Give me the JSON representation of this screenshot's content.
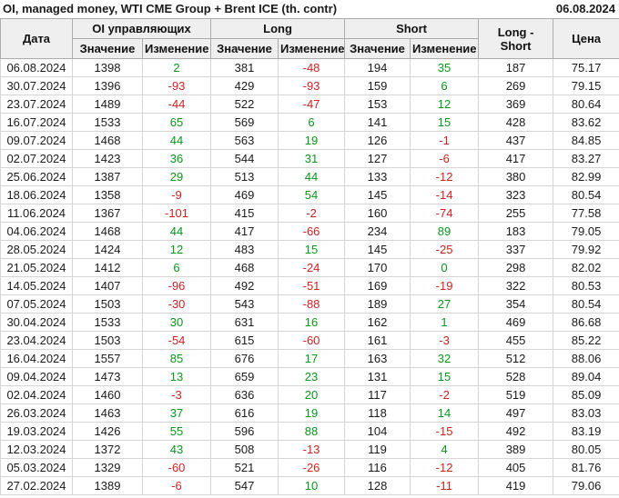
{
  "header": {
    "title": "OI, managed money, WTI CME Group + Brent ICE (th. contr)",
    "date": "06.08.2024"
  },
  "table_labels": {
    "col_date": "Дата",
    "group_oi": "OI управляющих",
    "group_long": "Long",
    "group_short": "Short",
    "col_long_short": "Long - Short",
    "col_price": "Цена",
    "sub_value": "Значение",
    "sub_change": "Изменение"
  },
  "colors": {
    "positive_change": "#0a961e",
    "negative_change": "#cc2222",
    "header_bg": "#efefef"
  },
  "chart_data": {
    "type": "table",
    "title": "OI, managed money, WTI CME Group + Brent ICE (th. contr)",
    "as_of_date": "06.08.2024",
    "columns": [
      "Дата",
      "OI управляющих Значение",
      "OI управляющих Изменение",
      "Long Значение",
      "Long Изменение",
      "Short Значение",
      "Short Изменение",
      "Long - Short",
      "Цена"
    ],
    "rows": [
      {
        "date": "06.08.2024",
        "oi": 1398,
        "oi_chg": 2,
        "long": 381,
        "long_chg": -48,
        "short": 194,
        "short_chg": 35,
        "long_short": 187,
        "price": 75.17
      },
      {
        "date": "30.07.2024",
        "oi": 1396,
        "oi_chg": -93,
        "long": 429,
        "long_chg": -93,
        "short": 159,
        "short_chg": 6,
        "long_short": 269,
        "price": 79.15
      },
      {
        "date": "23.07.2024",
        "oi": 1489,
        "oi_chg": -44,
        "long": 522,
        "long_chg": -47,
        "short": 153,
        "short_chg": 12,
        "long_short": 369,
        "price": 80.64
      },
      {
        "date": "16.07.2024",
        "oi": 1533,
        "oi_chg": 65,
        "long": 569,
        "long_chg": 6,
        "short": 141,
        "short_chg": 15,
        "long_short": 428,
        "price": 83.62
      },
      {
        "date": "09.07.2024",
        "oi": 1468,
        "oi_chg": 44,
        "long": 563,
        "long_chg": 19,
        "short": 126,
        "short_chg": -1,
        "long_short": 437,
        "price": 84.85
      },
      {
        "date": "02.07.2024",
        "oi": 1423,
        "oi_chg": 36,
        "long": 544,
        "long_chg": 31,
        "short": 127,
        "short_chg": -6,
        "long_short": 417,
        "price": 83.27
      },
      {
        "date": "25.06.2024",
        "oi": 1387,
        "oi_chg": 29,
        "long": 513,
        "long_chg": 44,
        "short": 133,
        "short_chg": -12,
        "long_short": 380,
        "price": 82.99
      },
      {
        "date": "18.06.2024",
        "oi": 1358,
        "oi_chg": -9,
        "long": 469,
        "long_chg": 54,
        "short": 145,
        "short_chg": -14,
        "long_short": 323,
        "price": 80.54
      },
      {
        "date": "11.06.2024",
        "oi": 1367,
        "oi_chg": -101,
        "long": 415,
        "long_chg": -2,
        "short": 160,
        "short_chg": -74,
        "long_short": 255,
        "price": 77.58
      },
      {
        "date": "04.06.2024",
        "oi": 1468,
        "oi_chg": 44,
        "long": 417,
        "long_chg": -66,
        "short": 234,
        "short_chg": 89,
        "long_short": 183,
        "price": 79.05
      },
      {
        "date": "28.05.2024",
        "oi": 1424,
        "oi_chg": 12,
        "long": 483,
        "long_chg": 15,
        "short": 145,
        "short_chg": -25,
        "long_short": 337,
        "price": 79.92
      },
      {
        "date": "21.05.2024",
        "oi": 1412,
        "oi_chg": 6,
        "long": 468,
        "long_chg": -24,
        "short": 170,
        "short_chg": 0,
        "long_short": 298,
        "price": 82.02
      },
      {
        "date": "14.05.2024",
        "oi": 1407,
        "oi_chg": -96,
        "long": 492,
        "long_chg": -51,
        "short": 169,
        "short_chg": -19,
        "long_short": 322,
        "price": 80.53
      },
      {
        "date": "07.05.2024",
        "oi": 1503,
        "oi_chg": -30,
        "long": 543,
        "long_chg": -88,
        "short": 189,
        "short_chg": 27,
        "long_short": 354,
        "price": 80.54
      },
      {
        "date": "30.04.2024",
        "oi": 1533,
        "oi_chg": 30,
        "long": 631,
        "long_chg": 16,
        "short": 162,
        "short_chg": 1,
        "long_short": 469,
        "price": 86.68
      },
      {
        "date": "23.04.2024",
        "oi": 1503,
        "oi_chg": -54,
        "long": 615,
        "long_chg": -60,
        "short": 161,
        "short_chg": -3,
        "long_short": 455,
        "price": 85.22
      },
      {
        "date": "16.04.2024",
        "oi": 1557,
        "oi_chg": 85,
        "long": 676,
        "long_chg": 17,
        "short": 163,
        "short_chg": 32,
        "long_short": 512,
        "price": 88.06
      },
      {
        "date": "09.04.2024",
        "oi": 1473,
        "oi_chg": 13,
        "long": 659,
        "long_chg": 23,
        "short": 131,
        "short_chg": 15,
        "long_short": 528,
        "price": 89.04
      },
      {
        "date": "02.04.2024",
        "oi": 1460,
        "oi_chg": -3,
        "long": 636,
        "long_chg": 20,
        "short": 117,
        "short_chg": -2,
        "long_short": 519,
        "price": 85.09
      },
      {
        "date": "26.03.2024",
        "oi": 1463,
        "oi_chg": 37,
        "long": 616,
        "long_chg": 19,
        "short": 118,
        "short_chg": 14,
        "long_short": 497,
        "price": 83.03
      },
      {
        "date": "19.03.2024",
        "oi": 1426,
        "oi_chg": 55,
        "long": 596,
        "long_chg": 88,
        "short": 104,
        "short_chg": -15,
        "long_short": 492,
        "price": 83.19
      },
      {
        "date": "12.03.2024",
        "oi": 1372,
        "oi_chg": 43,
        "long": 508,
        "long_chg": -13,
        "short": 119,
        "short_chg": 4,
        "long_short": 389,
        "price": 80.05
      },
      {
        "date": "05.03.2024",
        "oi": 1329,
        "oi_chg": -60,
        "long": 521,
        "long_chg": -26,
        "short": 116,
        "short_chg": -12,
        "long_short": 405,
        "price": 81.76
      },
      {
        "date": "27.02.2024",
        "oi": 1389,
        "oi_chg": -6,
        "long": 547,
        "long_chg": 10,
        "short": 128,
        "short_chg": -11,
        "long_short": 419,
        "price": 79.06
      }
    ]
  }
}
